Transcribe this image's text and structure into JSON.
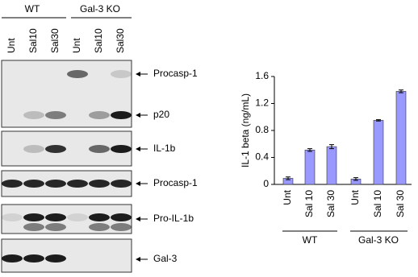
{
  "blot": {
    "groups": [
      "WT",
      "Gal-3 KO"
    ],
    "lanes": [
      "Unt",
      "Sal10",
      "Sal30",
      "Unt",
      "Sal10",
      "Sal30"
    ],
    "panels": [
      {
        "labels": [
          "Procasp-1",
          "p20"
        ]
      },
      {
        "labels": [
          "IL-1b"
        ]
      },
      {
        "labels": [
          "Procasp-1"
        ]
      },
      {
        "labels": [
          "Pro-IL-1b"
        ]
      },
      {
        "labels": [
          "Gal-3"
        ]
      }
    ]
  },
  "chart_data": {
    "type": "bar",
    "y_label": "IL-1 beta (ng/mL)",
    "categories": [
      "Unt",
      "Sal 10",
      "Sal 30",
      "Unt",
      "Sal 10",
      "Sal 30"
    ],
    "groups": [
      "WT",
      "Gal-3 KO"
    ],
    "values": [
      0.09,
      0.51,
      0.56,
      0.08,
      0.95,
      1.38
    ],
    "errors": [
      0.02,
      0.02,
      0.03,
      0.02,
      0.01,
      0.02
    ],
    "color": "#9999ff",
    "ylim": [
      0,
      1.6
    ],
    "yticks": [
      0,
      0.4,
      0.8,
      1.2,
      1.6
    ]
  }
}
